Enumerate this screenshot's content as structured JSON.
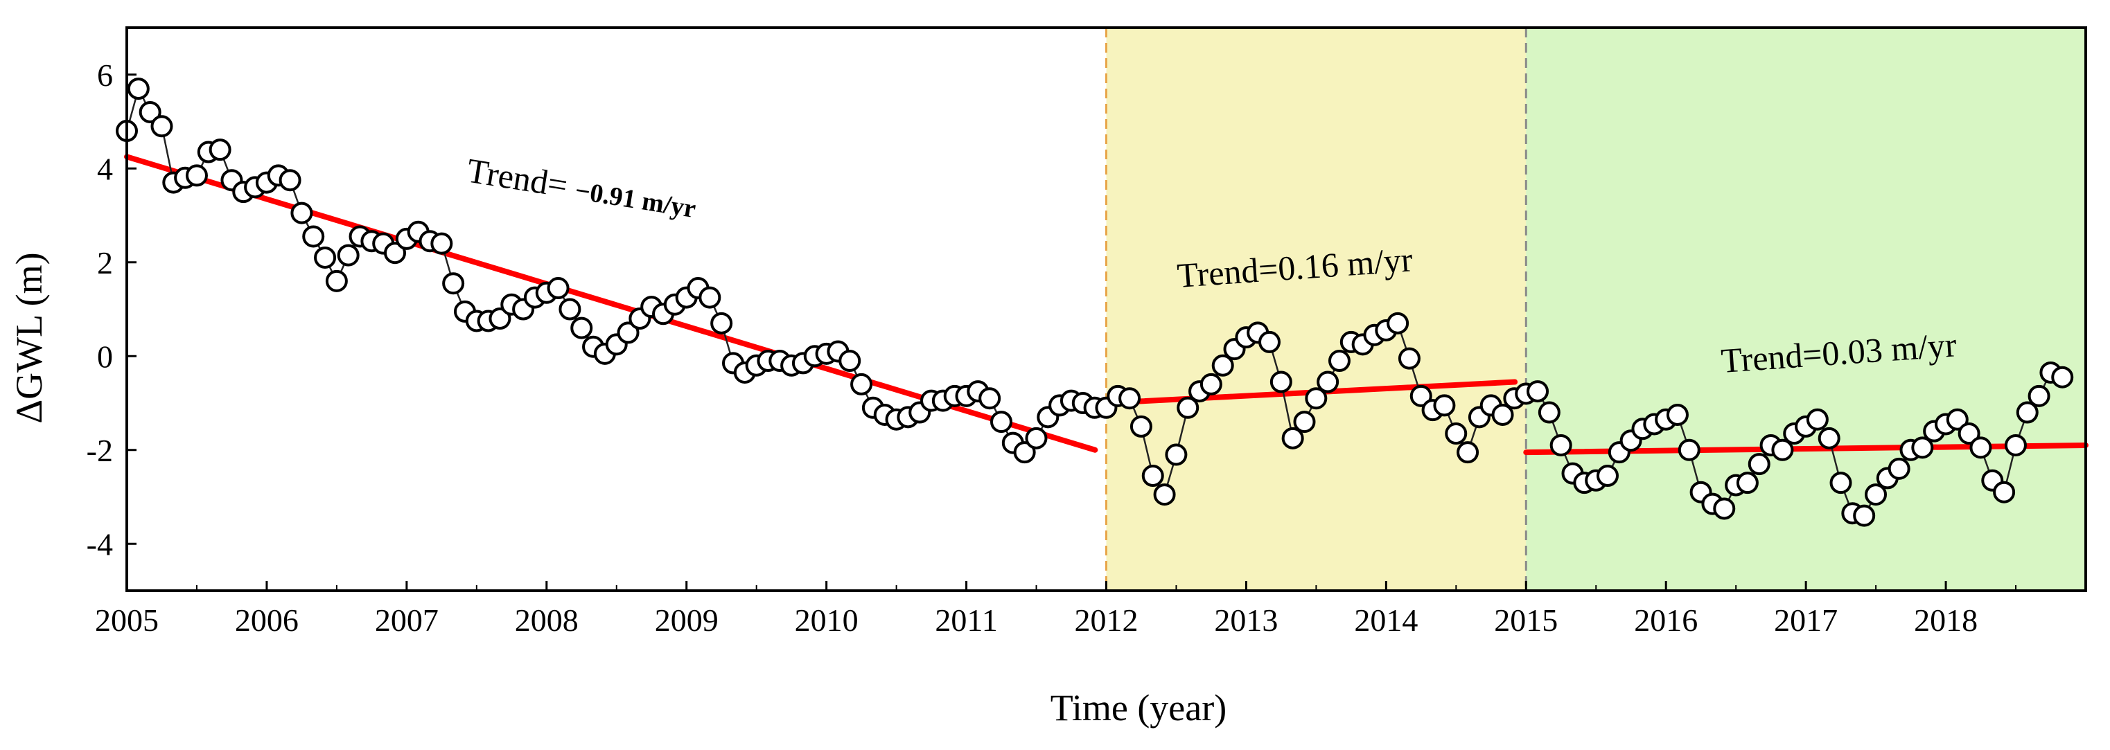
{
  "chart_data": {
    "type": "scatter",
    "title": "",
    "xlabel": "Time (year)",
    "ylabel": "ΔGWL (m)",
    "xlim": [
      2005,
      2019
    ],
    "ylim": [
      -5,
      7
    ],
    "x_ticks": [
      2005,
      2006,
      2007,
      2008,
      2009,
      2010,
      2011,
      2012,
      2013,
      2014,
      2015,
      2016,
      2017,
      2018
    ],
    "y_ticks": [
      -4,
      -2,
      0,
      2,
      4,
      6
    ],
    "periods": [
      {
        "start": 2012,
        "end": 2015,
        "color": "#f7f3be",
        "divider_color": "#e8a64a"
      },
      {
        "start": 2015,
        "end": 2019,
        "color": "#d8f6c4",
        "divider_color": "#8a8a8a"
      }
    ],
    "series": [
      {
        "name": "ΔGWL",
        "marker": "open-circle",
        "x_start": 2005.0,
        "x_step": 0.08333,
        "values": [
          4.8,
          5.7,
          5.2,
          4.9,
          3.7,
          3.8,
          3.85,
          4.35,
          4.4,
          3.75,
          3.5,
          3.6,
          3.7,
          3.85,
          3.75,
          3.05,
          2.55,
          2.1,
          1.6,
          2.15,
          2.55,
          2.45,
          2.4,
          2.2,
          2.5,
          2.65,
          2.45,
          2.4,
          1.55,
          0.95,
          0.75,
          0.75,
          0.8,
          1.1,
          1.0,
          1.25,
          1.35,
          1.45,
          1.0,
          0.6,
          0.2,
          0.05,
          0.25,
          0.5,
          0.8,
          1.05,
          0.9,
          1.1,
          1.25,
          1.45,
          1.25,
          0.7,
          -0.15,
          -0.35,
          -0.2,
          -0.1,
          -0.1,
          -0.2,
          -0.15,
          0.0,
          0.05,
          0.1,
          -0.1,
          -0.6,
          -1.1,
          -1.25,
          -1.35,
          -1.3,
          -1.2,
          -0.95,
          -0.95,
          -0.85,
          -0.85,
          -0.75,
          -0.9,
          -1.4,
          -1.85,
          -2.05,
          -1.75,
          -1.3,
          -1.05,
          -0.95,
          -1.0,
          -1.1,
          -1.1,
          -0.85,
          -0.9,
          -1.5,
          -2.55,
          -2.95,
          -2.1,
          -1.1,
          -0.75,
          -0.6,
          -0.2,
          0.15,
          0.4,
          0.5,
          0.3,
          -0.55,
          -1.75,
          -1.4,
          -0.9,
          -0.55,
          -0.1,
          0.3,
          0.25,
          0.45,
          0.55,
          0.7,
          -0.05,
          -0.85,
          -1.15,
          -1.05,
          -1.65,
          -2.05,
          -1.3,
          -1.05,
          -1.25,
          -0.9,
          -0.8,
          -0.75,
          -1.2,
          -1.9,
          -2.5,
          -2.7,
          -2.65,
          -2.55,
          -2.05,
          -1.8,
          -1.55,
          -1.45,
          -1.35,
          -1.25,
          -2.0,
          -2.9,
          -3.15,
          -3.25,
          -2.75,
          -2.7,
          -2.3,
          -1.9,
          -2.0,
          -1.65,
          -1.5,
          -1.35,
          -1.75,
          -2.7,
          -3.35,
          -3.4,
          -2.95,
          -2.6,
          -2.4,
          -2.0,
          -1.95,
          -1.6,
          -1.45,
          -1.35,
          -1.65,
          -1.95,
          -2.65,
          -2.9,
          -1.9,
          -1.2,
          -0.85,
          -0.35,
          -0.45
        ]
      }
    ],
    "trends": [
      {
        "label": "Trend= ",
        "value_label": "−0.91 m/yr",
        "x": [
          2005.0,
          2011.92
        ],
        "y": [
          4.25,
          -2.0
        ],
        "color": "#ff0000"
      },
      {
        "label": "Trend=0.16 m/yr",
        "x": [
          2012.0,
          2014.92
        ],
        "y": [
          -1.0,
          -0.55
        ],
        "color": "#ff0000"
      },
      {
        "label": "Trend=0.03 m/yr",
        "x": [
          2015.0,
          2019.0
        ],
        "y": [
          -2.05,
          -1.9
        ],
        "color": "#ff0000"
      }
    ]
  }
}
